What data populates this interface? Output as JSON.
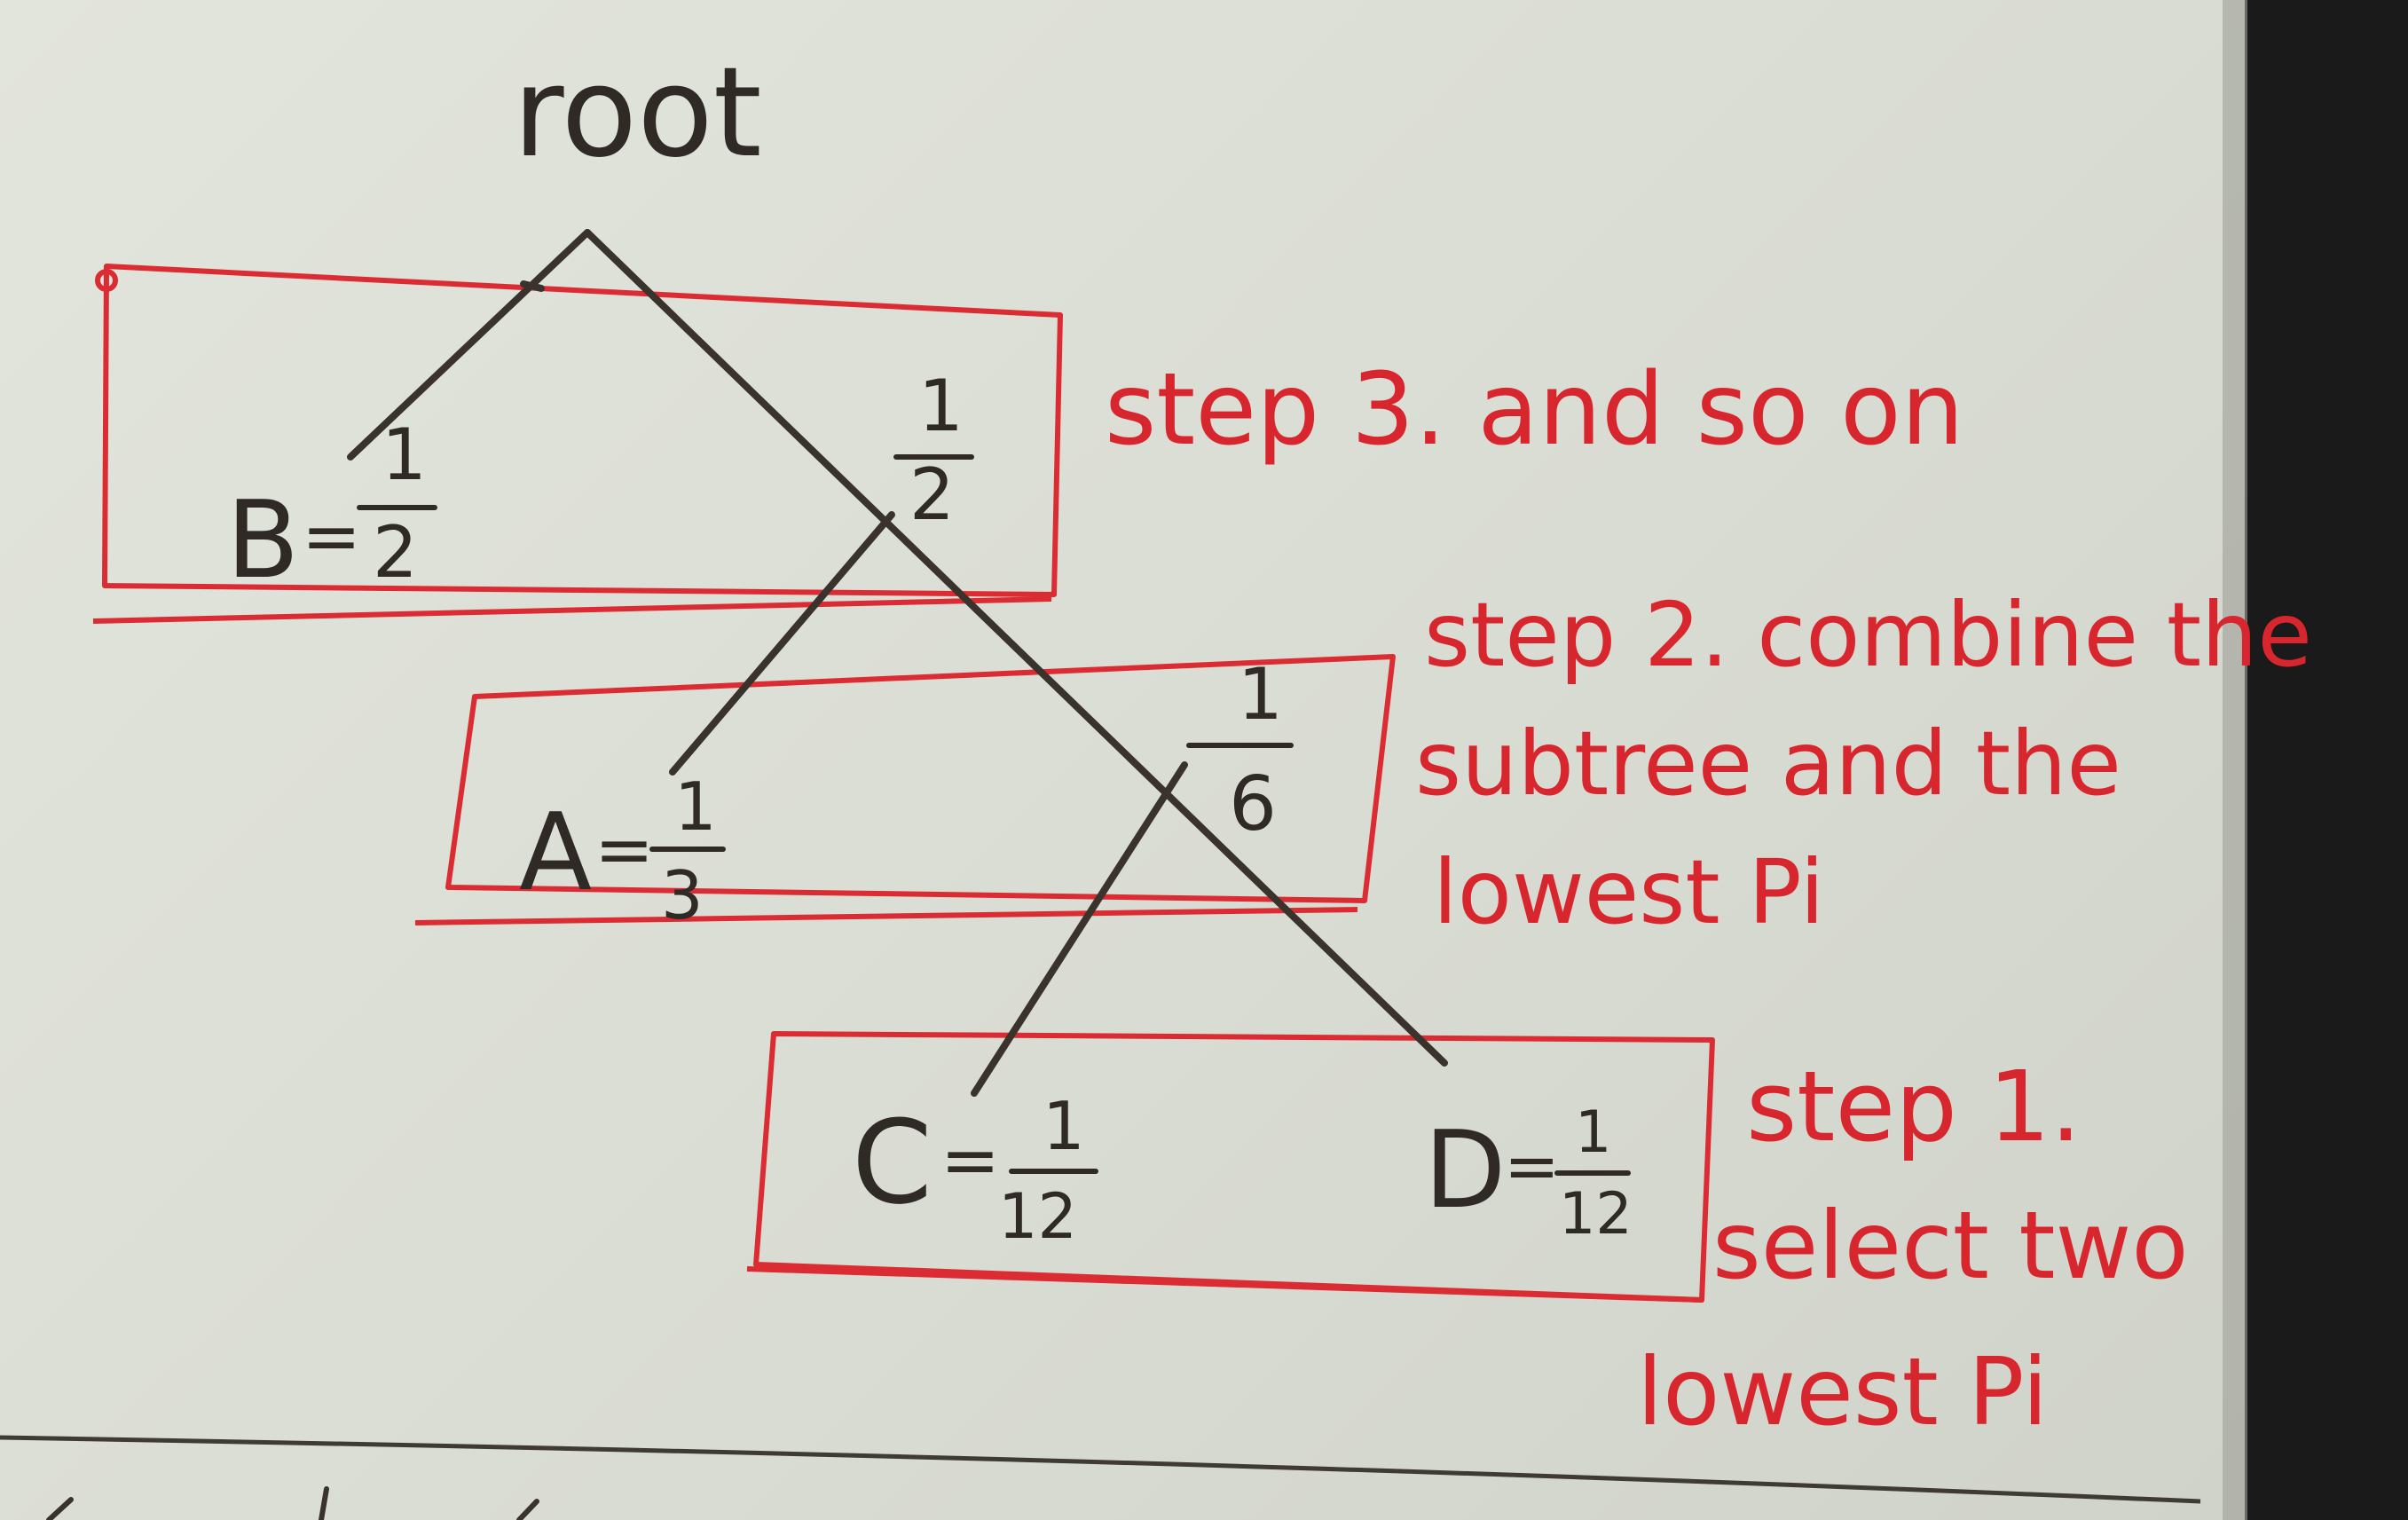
{
  "tree": {
    "root_label": "root",
    "node_b": {
      "name": "B",
      "eq": "=",
      "num": "1",
      "den": "2"
    },
    "node_sub_half": {
      "num": "1",
      "den": "2"
    },
    "node_a": {
      "name": "A",
      "eq": "=",
      "num": "1",
      "den": "3"
    },
    "node_sub_sixth": {
      "num": "1",
      "den": "6"
    },
    "node_c": {
      "name": "C",
      "eq": "=",
      "num": "1",
      "den": "12"
    },
    "node_d": {
      "name": "D",
      "eq": "=",
      "num": "1",
      "den": "12"
    }
  },
  "annotations": {
    "step3": "step 3. and so on",
    "step2_line1": "step 2. combine the",
    "step2_line2": "subtree and the",
    "step2_line3": "lowest Pi",
    "step1_line1": "step 1.",
    "step1_line2": "select two",
    "step1_line3": "lowest Pi"
  },
  "colors": {
    "ink": "#2f2a25",
    "annotation_red": "#d7262e",
    "paper": "#dfe2d9",
    "desk_dark": "#1a1a1a"
  }
}
